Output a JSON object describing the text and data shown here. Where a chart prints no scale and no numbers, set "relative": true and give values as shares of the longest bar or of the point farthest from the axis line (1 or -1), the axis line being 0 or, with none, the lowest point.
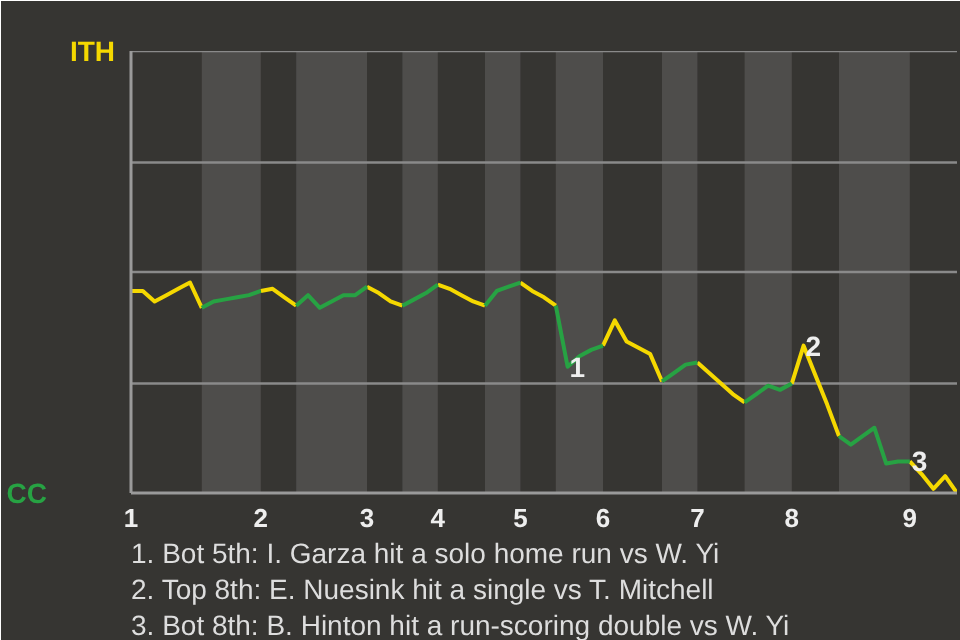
{
  "chart_data": {
    "type": "line",
    "relative": true,
    "categories": [
      "1",
      null,
      null,
      null,
      null,
      null,
      null,
      null,
      null,
      null,
      null,
      "2",
      null,
      null,
      null,
      null,
      null,
      null,
      null,
      null,
      "3",
      null,
      null,
      null,
      null,
      null,
      "4",
      null,
      null,
      null,
      null,
      null,
      null,
      "5",
      null,
      null,
      null,
      null,
      null,
      null,
      "6",
      null,
      null,
      null,
      null,
      null,
      null,
      null,
      "7",
      null,
      null,
      null,
      null,
      null,
      null,
      null,
      "8",
      null,
      null,
      null,
      null,
      null,
      null,
      null,
      null,
      null,
      "9",
      null,
      null,
      null,
      null
    ],
    "marker": "none",
    "line_style": "solid",
    "ref_lines": [
      {
        "axis": "y",
        "value": 0.52
      },
      {
        "axis": "y",
        "value": 1.05
      },
      {
        "axis": "y",
        "value": 1.57
      },
      {
        "axis": "y",
        "value": 2.1
      }
    ],
    "series": [
      {
        "name": "ITH",
        "color": "#f5d800",
        "values": [
          0.96,
          0.96,
          0.91,
          0.94,
          0.97,
          1.0,
          0.88,
          null,
          null,
          null,
          null,
          0.96,
          0.97,
          0.93,
          0.89,
          null,
          null,
          null,
          null,
          null,
          0.98,
          0.95,
          0.91,
          0.89,
          null,
          null,
          0.99,
          0.97,
          0.94,
          0.91,
          0.89,
          null,
          null,
          1.0,
          0.96,
          0.93,
          0.89,
          null,
          null,
          null,
          0.7,
          0.82,
          0.72,
          0.69,
          0.66,
          0.53,
          null,
          null,
          0.62,
          0.57,
          0.52,
          0.47,
          0.43,
          null,
          null,
          null,
          0.52,
          0.7,
          0.56,
          0.42,
          0.27,
          null,
          null,
          null,
          null,
          null,
          0.15,
          0.09,
          0.02,
          0.08,
          0.0
        ]
      },
      {
        "name": "CC",
        "color": "#27a243",
        "values": [
          null,
          null,
          null,
          null,
          null,
          null,
          0.88,
          0.91,
          0.92,
          0.93,
          0.94,
          0.96,
          null,
          null,
          0.89,
          0.94,
          0.88,
          0.91,
          0.94,
          0.94,
          0.98,
          null,
          null,
          0.89,
          0.92,
          0.95,
          0.99,
          null,
          null,
          null,
          0.89,
          0.96,
          0.98,
          1.0,
          null,
          null,
          0.89,
          0.6,
          0.65,
          0.68,
          0.7,
          null,
          null,
          null,
          null,
          0.53,
          0.57,
          0.61,
          0.62,
          null,
          null,
          null,
          0.43,
          0.47,
          0.51,
          0.49,
          0.52,
          null,
          null,
          null,
          0.27,
          0.23,
          0.27,
          0.31,
          0.14,
          0.15,
          0.15,
          null,
          null,
          null,
          null
        ]
      }
    ],
    "annotations": [
      {
        "text": "1",
        "y": 0.6
      },
      {
        "text": "2",
        "y": 0.7
      },
      {
        "text": "3",
        "y": 0.15
      },
      "1. Bot 5th: I. Garza hit a solo home run vs W. Yi",
      "2. Top 8th: E. Nuesink hit a single vs T. Mitchell",
      "3. Bot 8th: B. Hinton hit a run-scoring double vs W. Yi"
    ]
  }
}
